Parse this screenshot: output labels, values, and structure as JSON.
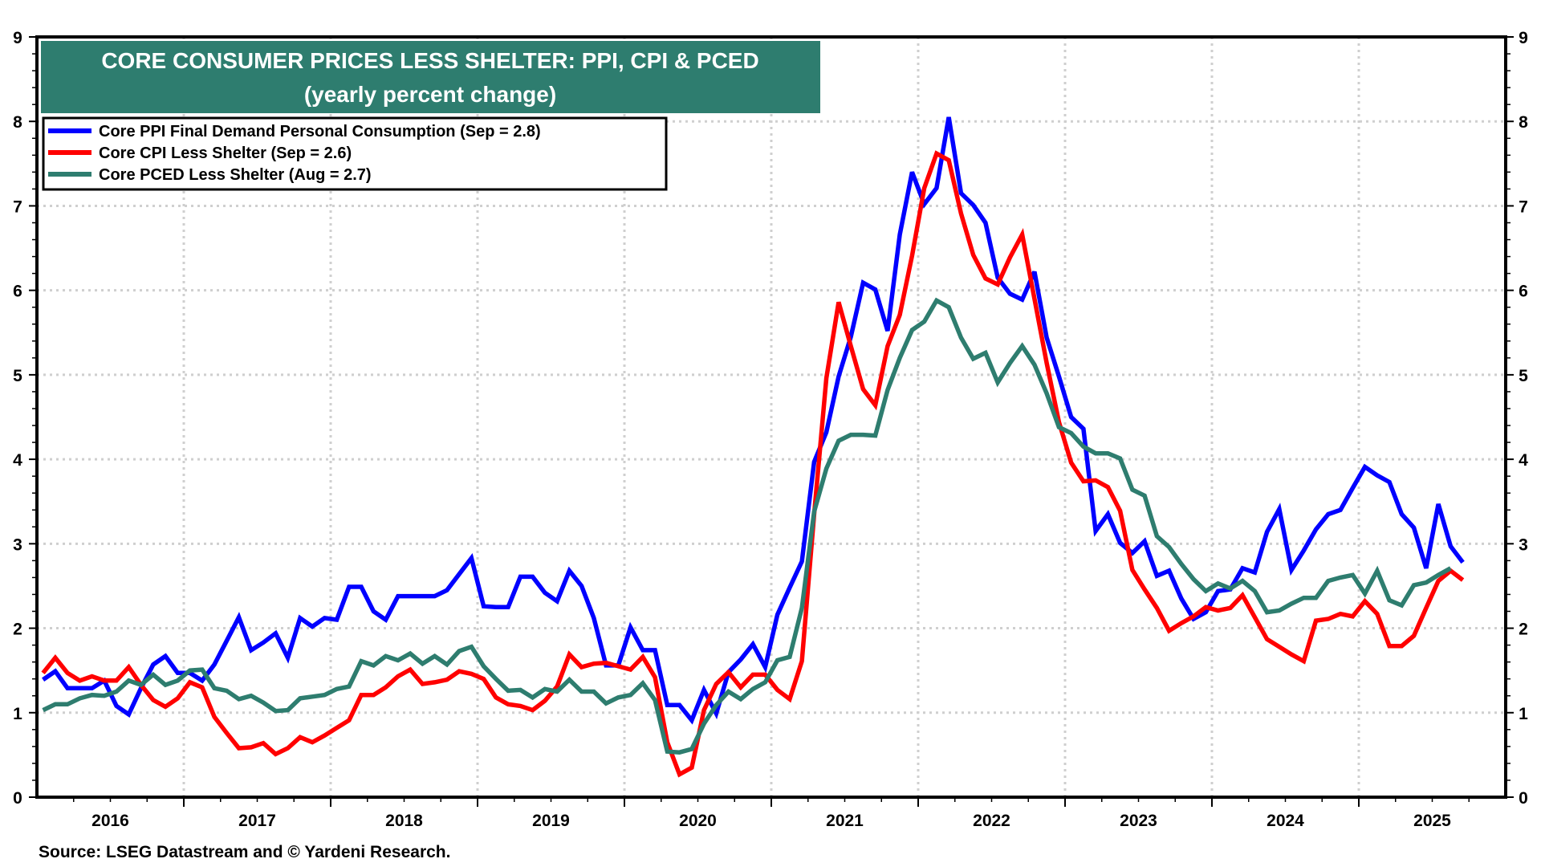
{
  "chart_data": {
    "type": "line",
    "title": "CORE CONSUMER PRICES LESS SHELTER: PPI, CPI & PCED",
    "subtitle": "(yearly percent change)",
    "source": "Source: LSEG Datastream and © Yardeni Research.",
    "x_start": "2016-01",
    "x_frequency": "monthly",
    "xlim": [
      "2016-01",
      "2025-12"
    ],
    "x_tick_labels": [
      "2016",
      "2017",
      "2018",
      "2019",
      "2020",
      "2021",
      "2022",
      "2023",
      "2024",
      "2025"
    ],
    "ylim": [
      0,
      9
    ],
    "y_tick_labels": [
      "0",
      "1",
      "2",
      "3",
      "4",
      "5",
      "6",
      "7",
      "8",
      "9"
    ],
    "grid": true,
    "legend_position": "top-left",
    "colors": {
      "title_bg": "#2e7d6f",
      "ppi": "#0000ff",
      "cpi": "#ff0000",
      "pced": "#2e7d6f"
    },
    "series": [
      {
        "name": "Core PPI Final Demand Personal Consumption (Sep = 2.8)",
        "color": "#0000ff",
        "values": [
          1.39,
          1.49,
          1.29,
          1.29,
          1.29,
          1.38,
          1.08,
          0.98,
          1.29,
          1.57,
          1.67,
          1.47,
          1.47,
          1.38,
          1.57,
          1.85,
          2.13,
          1.74,
          1.83,
          1.94,
          1.65,
          2.12,
          2.02,
          2.12,
          2.1,
          2.49,
          2.49,
          2.2,
          2.1,
          2.38,
          2.38,
          2.38,
          2.38,
          2.45,
          2.64,
          2.83,
          2.26,
          2.25,
          2.25,
          2.61,
          2.61,
          2.42,
          2.32,
          2.68,
          2.5,
          2.12,
          1.56,
          1.56,
          2.01,
          1.74,
          1.74,
          1.09,
          1.09,
          0.91,
          1.27,
          0.99,
          1.48,
          1.63,
          1.81,
          1.54,
          2.16,
          2.48,
          2.79,
          3.97,
          4.32,
          4.98,
          5.45,
          6.09,
          6.01,
          5.52,
          6.66,
          7.4,
          7.02,
          7.21,
          8.05,
          7.15,
          7.01,
          6.8,
          6.15,
          5.96,
          5.89,
          6.22,
          5.44,
          4.98,
          4.5,
          4.36,
          3.15,
          3.35,
          3.01,
          2.89,
          3.03,
          2.62,
          2.68,
          2.35,
          2.11,
          2.19,
          2.44,
          2.46,
          2.71,
          2.66,
          3.14,
          3.41,
          2.69,
          2.92,
          3.17,
          3.35,
          3.4,
          3.66,
          3.91,
          3.81,
          3.73,
          3.35,
          3.19,
          2.71,
          3.47,
          2.97,
          2.78
        ]
      },
      {
        "name": "Core CPI Less Shelter (Sep = 2.6)",
        "color": "#ff0000",
        "values": [
          1.47,
          1.65,
          1.47,
          1.38,
          1.43,
          1.38,
          1.38,
          1.54,
          1.33,
          1.15,
          1.07,
          1.17,
          1.36,
          1.3,
          0.95,
          0.76,
          0.58,
          0.59,
          0.64,
          0.51,
          0.58,
          0.71,
          0.65,
          0.73,
          0.82,
          0.91,
          1.21,
          1.21,
          1.3,
          1.43,
          1.51,
          1.34,
          1.36,
          1.39,
          1.49,
          1.46,
          1.4,
          1.18,
          1.1,
          1.08,
          1.03,
          1.14,
          1.31,
          1.69,
          1.54,
          1.58,
          1.59,
          1.55,
          1.51,
          1.66,
          1.42,
          0.65,
          0.27,
          0.35,
          1.03,
          1.34,
          1.48,
          1.3,
          1.45,
          1.45,
          1.27,
          1.16,
          1.61,
          3.35,
          4.96,
          5.86,
          5.34,
          4.83,
          4.64,
          5.34,
          5.71,
          6.41,
          7.21,
          7.62,
          7.54,
          6.91,
          6.42,
          6.14,
          6.07,
          6.39,
          6.66,
          5.9,
          5.14,
          4.44,
          3.96,
          3.74,
          3.75,
          3.67,
          3.39,
          2.69,
          2.46,
          2.24,
          1.97,
          2.06,
          2.14,
          2.25,
          2.21,
          2.24,
          2.39,
          2.13,
          1.87,
          1.78,
          1.69,
          1.61,
          2.09,
          2.11,
          2.17,
          2.14,
          2.32,
          2.17,
          1.79,
          1.79,
          1.91,
          2.24,
          2.56,
          2.68,
          2.57
        ]
      },
      {
        "name": "Core PCED Less Shelter (Aug = 2.7)",
        "color": "#2e7d6f",
        "values": [
          1.03,
          1.1,
          1.1,
          1.17,
          1.21,
          1.2,
          1.25,
          1.38,
          1.33,
          1.45,
          1.33,
          1.38,
          1.5,
          1.51,
          1.29,
          1.26,
          1.16,
          1.2,
          1.12,
          1.02,
          1.03,
          1.17,
          1.19,
          1.21,
          1.28,
          1.31,
          1.61,
          1.56,
          1.67,
          1.62,
          1.7,
          1.58,
          1.67,
          1.57,
          1.73,
          1.78,
          1.55,
          1.4,
          1.26,
          1.27,
          1.18,
          1.28,
          1.25,
          1.39,
          1.25,
          1.25,
          1.11,
          1.18,
          1.21,
          1.35,
          1.15,
          0.54,
          0.53,
          0.57,
          0.87,
          1.09,
          1.25,
          1.16,
          1.28,
          1.36,
          1.62,
          1.66,
          2.24,
          3.38,
          3.89,
          4.22,
          4.29,
          4.29,
          4.28,
          4.82,
          5.2,
          5.53,
          5.63,
          5.88,
          5.8,
          5.44,
          5.19,
          5.26,
          4.91,
          5.14,
          5.34,
          5.12,
          4.78,
          4.38,
          4.31,
          4.15,
          4.07,
          4.07,
          4.01,
          3.64,
          3.57,
          3.09,
          2.96,
          2.76,
          2.58,
          2.44,
          2.53,
          2.47,
          2.56,
          2.44,
          2.19,
          2.21,
          2.29,
          2.36,
          2.36,
          2.56,
          2.6,
          2.63,
          2.41,
          2.68,
          2.33,
          2.27,
          2.51,
          2.54,
          2.63,
          2.71
        ]
      }
    ]
  }
}
